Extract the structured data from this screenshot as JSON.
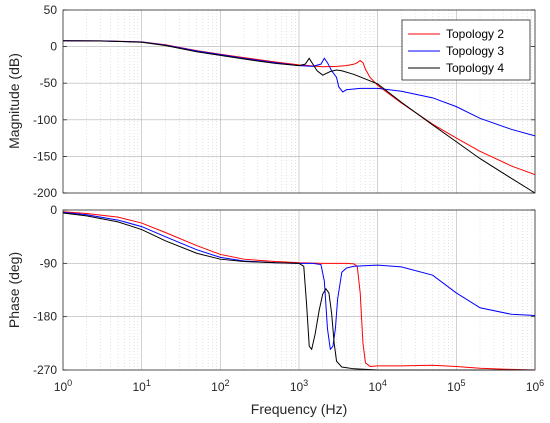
{
  "chart_data": {
    "type": "line",
    "x_scale": "log",
    "xlim": [
      1,
      1000000
    ],
    "xlabel": "Frequency  (Hz)",
    "x_ticks": [
      "10^0",
      "10^1",
      "10^2",
      "10^3",
      "10^4",
      "10^5",
      "10^6"
    ],
    "grid": true,
    "legend_position": "top-right",
    "panels": [
      {
        "id": "magnitude",
        "ylabel": "Magnitude (dB)",
        "ylim": [
          -200,
          50
        ],
        "y_ticks": [
          50,
          0,
          -50,
          -100,
          -150,
          -200
        ],
        "series": [
          {
            "name": "Topology 2",
            "color": "#ff0000",
            "points": [
              [
                1,
                8
              ],
              [
                3,
                7.9
              ],
              [
                10,
                6.5
              ],
              [
                20,
                2.5
              ],
              [
                50,
                -5.5
              ],
              [
                100,
                -10.5
              ],
              [
                200,
                -15
              ],
              [
                500,
                -21
              ],
              [
                1000,
                -25
              ],
              [
                2000,
                -27.5
              ],
              [
                3000,
                -27
              ],
              [
                4000,
                -26
              ],
              [
                5000,
                -24
              ],
              [
                5500,
                -22
              ],
              [
                6000,
                -19
              ],
              [
                6500,
                -22
              ],
              [
                7000,
                -31
              ],
              [
                8000,
                -42
              ],
              [
                10000,
                -53
              ],
              [
                20000,
                -77
              ],
              [
                50000,
                -106
              ],
              [
                100000,
                -125
              ],
              [
                200000,
                -143
              ],
              [
                500000,
                -163
              ],
              [
                1000000,
                -175
              ]
            ]
          },
          {
            "name": "Topology 3",
            "color": "#0000ff",
            "points": [
              [
                1,
                8
              ],
              [
                3,
                7.8
              ],
              [
                10,
                6.3
              ],
              [
                20,
                2
              ],
              [
                50,
                -6
              ],
              [
                100,
                -11
              ],
              [
                200,
                -16
              ],
              [
                500,
                -22
              ],
              [
                1000,
                -26
              ],
              [
                1500,
                -27
              ],
              [
                1900,
                -24
              ],
              [
                2100,
                -16
              ],
              [
                2300,
                -22
              ],
              [
                2600,
                -33
              ],
              [
                3000,
                -42
              ],
              [
                3200,
                -55
              ],
              [
                3600,
                -62
              ],
              [
                4000,
                -59
              ],
              [
                6000,
                -57
              ],
              [
                10000,
                -57
              ],
              [
                20000,
                -61
              ],
              [
                50000,
                -70
              ],
              [
                100000,
                -82
              ],
              [
                200000,
                -98
              ],
              [
                500000,
                -113
              ],
              [
                1000000,
                -122
              ]
            ]
          },
          {
            "name": "Topology 4",
            "color": "#000000",
            "points": [
              [
                1,
                8
              ],
              [
                3,
                7.7
              ],
              [
                10,
                6
              ],
              [
                20,
                1.5
              ],
              [
                50,
                -7
              ],
              [
                100,
                -12
              ],
              [
                200,
                -17
              ],
              [
                500,
                -23
              ],
              [
                1000,
                -26
              ],
              [
                1200,
                -24
              ],
              [
                1350,
                -16
              ],
              [
                1500,
                -24
              ],
              [
                1700,
                -33
              ],
              [
                2000,
                -39
              ],
              [
                2500,
                -34
              ],
              [
                3000,
                -32
              ],
              [
                3500,
                -33
              ],
              [
                5000,
                -38
              ],
              [
                10000,
                -51
              ],
              [
                20000,
                -76
              ],
              [
                50000,
                -107
              ],
              [
                100000,
                -130
              ],
              [
                200000,
                -153
              ],
              [
                500000,
                -180
              ],
              [
                1000000,
                -200
              ]
            ]
          }
        ]
      },
      {
        "id": "phase",
        "ylabel": "Phase (deg)",
        "ylim": [
          -270,
          0
        ],
        "y_ticks": [
          0,
          -90,
          -180,
          -270
        ],
        "series": [
          {
            "name": "Topology 2",
            "color": "#ff0000",
            "points": [
              [
                1,
                -3
              ],
              [
                2,
                -6
              ],
              [
                5,
                -12
              ],
              [
                10,
                -22
              ],
              [
                20,
                -38
              ],
              [
                50,
                -60
              ],
              [
                100,
                -75
              ],
              [
                200,
                -83
              ],
              [
                500,
                -87
              ],
              [
                1000,
                -89
              ],
              [
                2000,
                -90
              ],
              [
                3000,
                -90
              ],
              [
                4000,
                -90
              ],
              [
                5000,
                -91
              ],
              [
                5500,
                -95
              ],
              [
                6000,
                -140
              ],
              [
                6500,
                -225
              ],
              [
                7000,
                -258
              ],
              [
                8000,
                -264
              ],
              [
                10000,
                -263
              ],
              [
                20000,
                -263
              ],
              [
                50000,
                -262
              ],
              [
                100000,
                -264
              ],
              [
                200000,
                -267
              ],
              [
                500000,
                -269
              ],
              [
                1000000,
                -270
              ]
            ]
          },
          {
            "name": "Topology 3",
            "color": "#0000ff",
            "points": [
              [
                1,
                -4
              ],
              [
                2,
                -8
              ],
              [
                5,
                -17
              ],
              [
                10,
                -28
              ],
              [
                20,
                -45
              ],
              [
                50,
                -67
              ],
              [
                100,
                -80
              ],
              [
                200,
                -86
              ],
              [
                500,
                -89
              ],
              [
                1000,
                -90
              ],
              [
                1500,
                -90
              ],
              [
                1900,
                -92
              ],
              [
                2100,
                -120
              ],
              [
                2300,
                -200
              ],
              [
                2500,
                -235
              ],
              [
                2700,
                -230
              ],
              [
                2900,
                -200
              ],
              [
                3100,
                -150
              ],
              [
                3500,
                -105
              ],
              [
                4000,
                -98
              ],
              [
                5000,
                -95
              ],
              [
                10000,
                -93
              ],
              [
                20000,
                -96
              ],
              [
                50000,
                -110
              ],
              [
                100000,
                -140
              ],
              [
                200000,
                -165
              ],
              [
                500000,
                -176
              ],
              [
                1000000,
                -178
              ]
            ]
          },
          {
            "name": "Topology 4",
            "color": "#000000",
            "points": [
              [
                1,
                -5
              ],
              [
                2,
                -10
              ],
              [
                5,
                -20
              ],
              [
                10,
                -33
              ],
              [
                20,
                -52
              ],
              [
                50,
                -73
              ],
              [
                100,
                -83
              ],
              [
                200,
                -87
              ],
              [
                500,
                -89
              ],
              [
                1000,
                -90
              ],
              [
                1150,
                -95
              ],
              [
                1250,
                -160
              ],
              [
                1350,
                -230
              ],
              [
                1450,
                -235
              ],
              [
                1600,
                -210
              ],
              [
                1800,
                -170
              ],
              [
                2000,
                -142
              ],
              [
                2200,
                -133
              ],
              [
                2400,
                -140
              ],
              [
                2600,
                -175
              ],
              [
                2800,
                -225
              ],
              [
                3000,
                -255
              ],
              [
                3500,
                -265
              ],
              [
                5000,
                -268
              ],
              [
                10000,
                -270
              ],
              [
                1000000,
                -270
              ]
            ]
          }
        ]
      }
    ]
  }
}
